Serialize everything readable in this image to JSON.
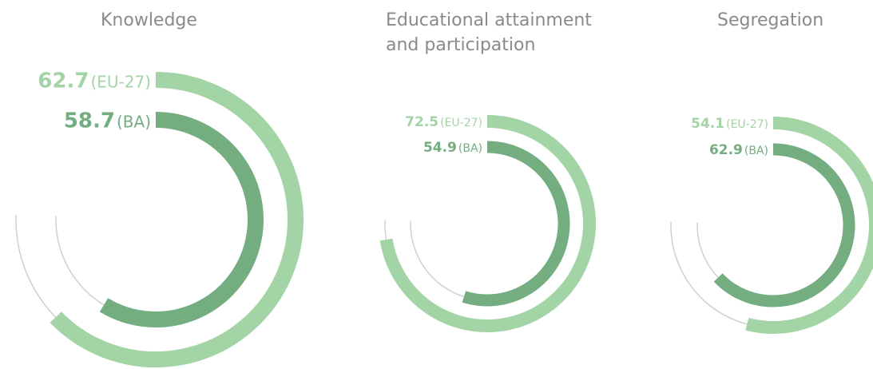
{
  "chart_data": [
    {
      "type": "radial_bar",
      "title": "Knowledge",
      "ylim": [
        0,
        100
      ],
      "series": [
        {
          "name": "(EU-27)",
          "color": "#a3d4a6",
          "values": [
            62.7
          ]
        },
        {
          "name": "(BA)",
          "color": "#74ad80",
          "values": [
            58.7
          ]
        }
      ]
    },
    {
      "type": "radial_bar",
      "title": "Educational attainment and participation",
      "ylim": [
        0,
        100
      ],
      "series": [
        {
          "name": "(EU-27)",
          "color": "#a3d4a6",
          "values": [
            72.5
          ]
        },
        {
          "name": "(BA)",
          "color": "#74ad80",
          "values": [
            54.9
          ]
        }
      ]
    },
    {
      "type": "radial_bar",
      "title": "Segregation",
      "ylim": [
        0,
        100
      ],
      "series": [
        {
          "name": "(EU-27)",
          "color": "#a3d4a6",
          "values": [
            54.1
          ]
        },
        {
          "name": "(BA)",
          "color": "#74ad80",
          "values": [
            62.9
          ]
        }
      ]
    }
  ]
}
